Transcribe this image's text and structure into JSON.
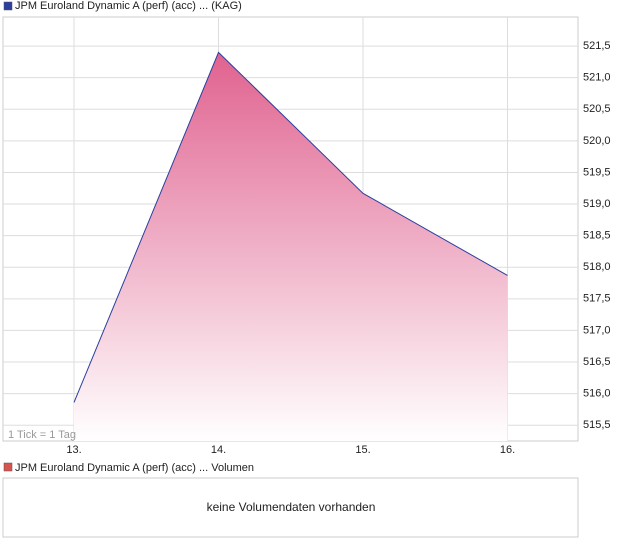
{
  "chart_data": {
    "type": "area",
    "categories": [
      "13.",
      "14.",
      "15.",
      "16."
    ],
    "series": [
      {
        "name": "JPM Euroland Dynamic A (perf) (acc) ... (KAG)",
        "color": "#2b3f9e",
        "fill": "#e0628f",
        "values": [
          515.86,
          521.4,
          519.17,
          517.87
        ]
      }
    ],
    "ylim": [
      515.25,
      521.96
    ],
    "yticks": [
      {
        "value": 515.5,
        "label": "515,5"
      },
      {
        "value": 516,
        "label": "516,0"
      },
      {
        "value": 516.5,
        "label": "516,5"
      },
      {
        "value": 517,
        "label": "517,0"
      },
      {
        "value": 517.5,
        "label": "517,5"
      },
      {
        "value": 518,
        "label": "518,0"
      },
      {
        "value": 518.5,
        "label": "518,5"
      },
      {
        "value": 519,
        "label": "519,0"
      },
      {
        "value": 519.5,
        "label": "519,5"
      },
      {
        "value": 520,
        "label": "520,0"
      },
      {
        "value": 520.5,
        "label": "520,5"
      },
      {
        "value": 521,
        "label": "521,0"
      },
      {
        "value": 521.5,
        "label": "521,5"
      }
    ],
    "grid": true,
    "annotation": "1 Tick = 1 Tag"
  },
  "volume_panel": {
    "legend": "JPM Euroland Dynamic A (perf) (acc) ... Volumen",
    "color": "#d9534f",
    "message": "keine Volumendaten vorhanden"
  }
}
